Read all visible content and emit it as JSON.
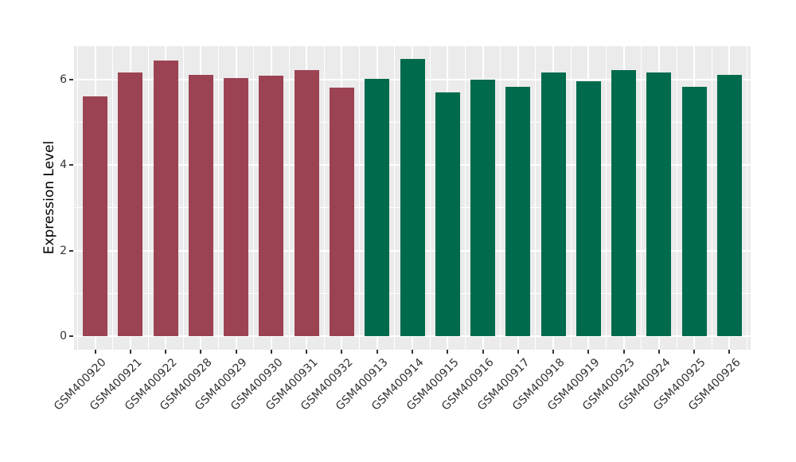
{
  "chart_data": {
    "type": "bar",
    "title": "",
    "xlabel": "",
    "ylabel": "Expression Level",
    "categories": [
      "GSM400920",
      "GSM400921",
      "GSM400922",
      "GSM400928",
      "GSM400929",
      "GSM400930",
      "GSM400931",
      "GSM400932",
      "GSM400913",
      "GSM400914",
      "GSM400915",
      "GSM400916",
      "GSM400917",
      "GSM400918",
      "GSM400919",
      "GSM400923",
      "GSM400924",
      "GSM400925",
      "GSM400926"
    ],
    "values": [
      5.61,
      6.17,
      6.45,
      6.12,
      6.03,
      6.09,
      6.22,
      5.82,
      6.02,
      6.48,
      5.7,
      6.0,
      5.83,
      6.17,
      5.96,
      6.22,
      6.17,
      5.83,
      6.12
    ],
    "bar_colors": [
      "#9c4353",
      "#9c4353",
      "#9c4353",
      "#9c4353",
      "#9c4353",
      "#9c4353",
      "#9c4353",
      "#9c4353",
      "#006a4d",
      "#006a4d",
      "#006a4d",
      "#006a4d",
      "#006a4d",
      "#006a4d",
      "#006a4d",
      "#006a4d",
      "#006a4d",
      "#006a4d",
      "#006a4d"
    ],
    "colors": {
      "group_red": "#9c4353",
      "group_green": "#006a4d",
      "panel_background": "#ebebeb",
      "grid": "#ffffff",
      "tick_text": "#333333",
      "axis_title_text": "#000000"
    },
    "yticks": [
      0,
      2,
      4,
      6
    ],
    "minor_yticks": [
      1,
      3,
      5
    ],
    "ylim": [
      -0.32,
      6.8
    ],
    "grid": "on",
    "legend": "none"
  }
}
